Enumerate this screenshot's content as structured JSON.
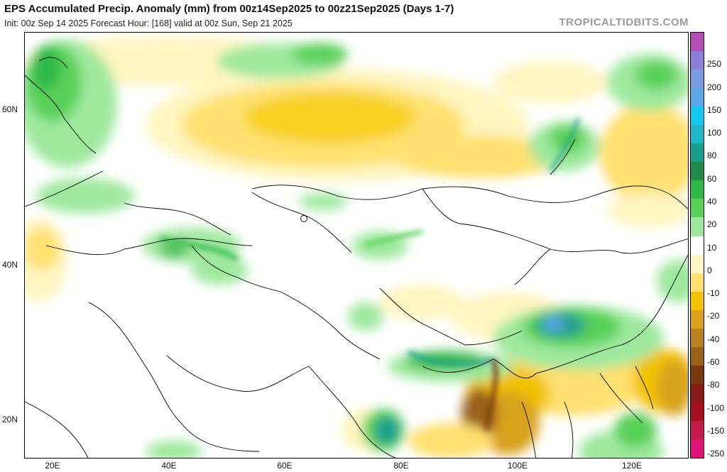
{
  "header": {
    "title": "EPS Accumulated Precip. Anomaly (mm) from 00z14Sep2025 to 00z21Sep2025 (Days 1-7)",
    "subtitle": "Init: 00z Sep 14 2025   Forecast Hour: [168]   valid at 00z Sun, Sep 21 2025",
    "brand": "TROPICALTIDBITS.COM"
  },
  "map": {
    "lat_labels": [
      "60N",
      "40N",
      "20N"
    ],
    "lon_labels": [
      "20E",
      "40E",
      "60E",
      "80E",
      "100E",
      "120E"
    ]
  },
  "colorbar": {
    "labels": [
      "250",
      "200",
      "150",
      "100",
      "80",
      "60",
      "40",
      "20",
      "10",
      "0",
      "-10",
      "-20",
      "-40",
      "-60",
      "-80",
      "-100",
      "-150",
      "-250"
    ],
    "colors": [
      "#b34fb3",
      "#8b7fd6",
      "#7a9be0",
      "#5aa8e6",
      "#10c8f0",
      "#1fb8c8",
      "#1a9e8e",
      "#1f8a4a",
      "#2fb84a",
      "#58d058",
      "#9ee89e",
      "#ffffff",
      "#fff5c0",
      "#ffe070",
      "#f2c200",
      "#d9a21a",
      "#b8801f",
      "#99611a",
      "#7a3a10",
      "#8a1a1a",
      "#a80f1e",
      "#c21a4a",
      "#e0157a"
    ]
  }
}
